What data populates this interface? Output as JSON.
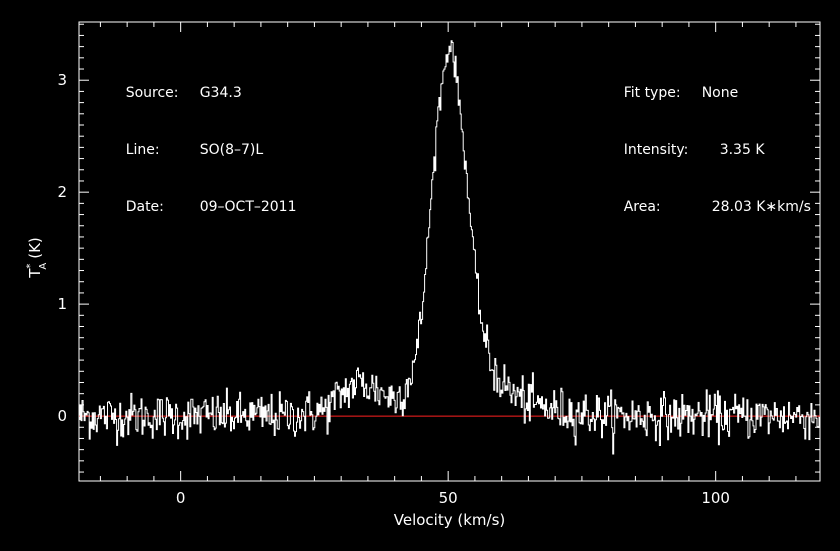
{
  "chart_data": {
    "type": "line",
    "header_left": [
      {
        "label": "Source:",
        "value": "G34.3"
      },
      {
        "label": "Line:",
        "value": "SO(8–7)L"
      },
      {
        "label": "Date:",
        "value": "09–OCT–2011"
      }
    ],
    "header_right": [
      {
        "label": "Fit type:",
        "value": "None"
      },
      {
        "label": "Intensity:",
        "value": "3.35 K"
      },
      {
        "label": "Area:",
        "value": "28.03 K∗km/s"
      }
    ],
    "xlabel": "Velocity (km/s)",
    "ylabel_main": "T",
    "ylabel_sup": "*",
    "ylabel_sub": "A",
    "ylabel_unit": "(K)",
    "xlim": [
      -19,
      119.5
    ],
    "ylim": [
      -0.58,
      3.52
    ],
    "x_ticks": [
      0,
      50,
      100
    ],
    "y_ticks": [
      0,
      1,
      2,
      3
    ],
    "baseline_value": 0,
    "colors": {
      "background": "#000000",
      "axes": "#ffffff",
      "spectrum": "#ffffff",
      "baseline": "#ff2020"
    },
    "series": [
      {
        "noise_rms": 0.1,
        "x": [
          -19,
          0,
          20,
          27,
          30,
          33,
          36,
          38,
          40,
          42,
          43,
          44,
          45,
          46,
          47,
          48,
          49,
          50,
          50.5,
          51,
          52,
          53,
          54,
          55,
          56,
          57,
          58,
          60,
          62,
          65,
          70,
          80,
          100,
          119.5
        ],
        "y": [
          0,
          0,
          0,
          0.05,
          0.2,
          0.3,
          0.25,
          0.2,
          0.15,
          0.25,
          0.4,
          0.55,
          0.9,
          1.5,
          2.1,
          2.7,
          3.05,
          3.3,
          3.35,
          3.2,
          2.8,
          2.35,
          1.8,
          1.3,
          0.9,
          0.62,
          0.45,
          0.3,
          0.2,
          0.12,
          0.05,
          0,
          0,
          0
        ]
      }
    ]
  }
}
